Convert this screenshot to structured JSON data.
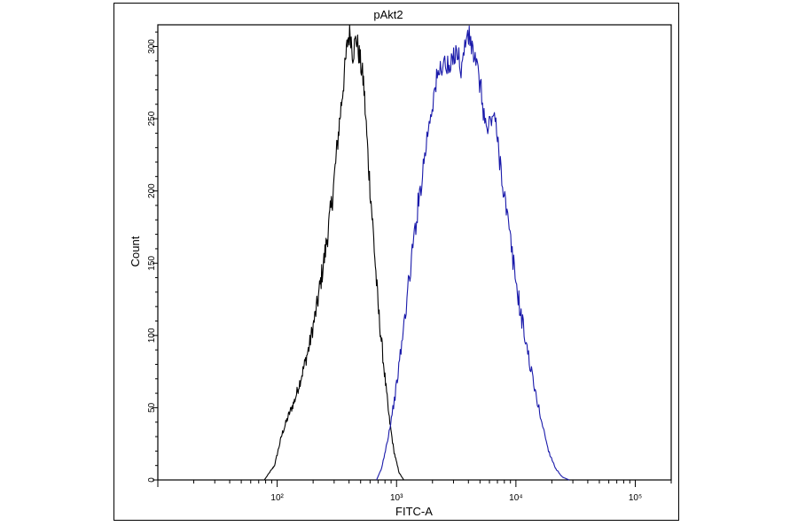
{
  "chart_data": {
    "type": "line",
    "title": "pAkt2",
    "xlabel": "FITC-A",
    "ylabel": "Count",
    "x_scale": "log",
    "xlim": [
      10,
      200000
    ],
    "ylim": [
      0,
      315
    ],
    "x_ticks": [
      {
        "value": 100,
        "label": "10²"
      },
      {
        "value": 1000,
        "label": "10³"
      },
      {
        "value": 10000,
        "label": "10⁴"
      },
      {
        "value": 100000,
        "label": "10⁵"
      }
    ],
    "y_ticks": [
      0,
      50,
      100,
      150,
      200,
      250,
      300
    ],
    "series": [
      {
        "color": "#000000",
        "points": [
          [
            78,
            0
          ],
          [
            95,
            10
          ],
          [
            110,
            32
          ],
          [
            125,
            45
          ],
          [
            140,
            55
          ],
          [
            160,
            72
          ],
          [
            185,
            92
          ],
          [
            215,
            120
          ],
          [
            250,
            155
          ],
          [
            290,
            195
          ],
          [
            330,
            245
          ],
          [
            365,
            280
          ],
          [
            390,
            305
          ],
          [
            410,
            310
          ],
          [
            430,
            295
          ],
          [
            460,
            306
          ],
          [
            500,
            288
          ],
          [
            530,
            275
          ],
          [
            580,
            220
          ],
          [
            640,
            170
          ],
          [
            700,
            120
          ],
          [
            780,
            80
          ],
          [
            860,
            45
          ],
          [
            950,
            20
          ],
          [
            1050,
            5
          ],
          [
            1150,
            0
          ]
        ]
      },
      {
        "color": "#1a1aaa",
        "points": [
          [
            680,
            0
          ],
          [
            750,
            8
          ],
          [
            860,
            32
          ],
          [
            980,
            60
          ],
          [
            1120,
            98
          ],
          [
            1280,
            140
          ],
          [
            1460,
            180
          ],
          [
            1660,
            215
          ],
          [
            1890,
            250
          ],
          [
            2150,
            275
          ],
          [
            2450,
            290
          ],
          [
            2800,
            282
          ],
          [
            3150,
            300
          ],
          [
            3500,
            284
          ],
          [
            3900,
            310
          ],
          [
            4400,
            296
          ],
          [
            5000,
            274
          ],
          [
            5700,
            240
          ],
          [
            6500,
            255
          ],
          [
            7400,
            220
          ],
          [
            8500,
            180
          ],
          [
            9700,
            145
          ],
          [
            11000,
            115
          ],
          [
            12600,
            88
          ],
          [
            14400,
            62
          ],
          [
            16500,
            40
          ],
          [
            18800,
            20
          ],
          [
            21500,
            8
          ],
          [
            24500,
            2
          ],
          [
            28000,
            0
          ]
        ]
      }
    ]
  }
}
